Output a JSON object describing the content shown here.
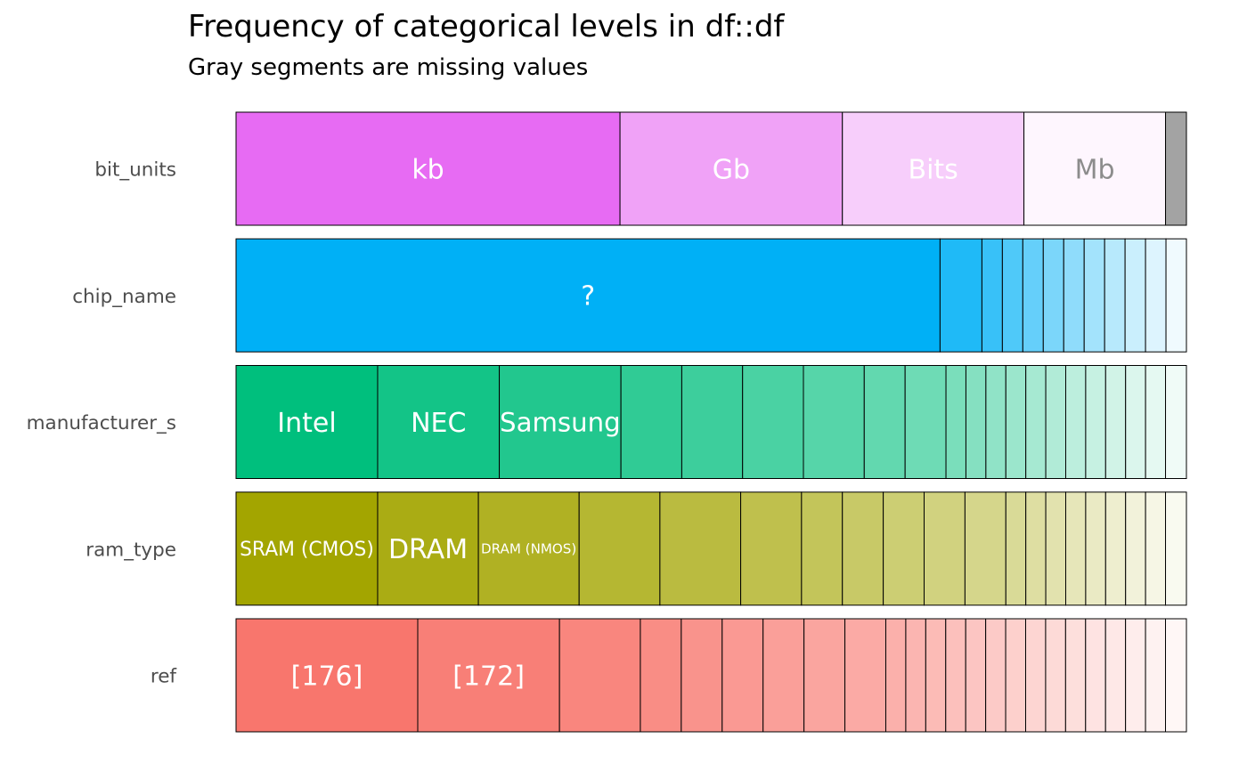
{
  "chart_data": {
    "type": "bar",
    "title": "Frequency of categorical levels in df::df",
    "subtitle": "Gray segments are missing values",
    "missing_color": "#a3a3a3",
    "label_light_color": "#ffffff",
    "label_dark_color": "#8c8c8c",
    "variables": [
      {
        "name": "bit_units",
        "base_color": "#e76bf3",
        "segments": [
          {
            "label": "kb",
            "proportion": 0.404
          },
          {
            "label": "Gb",
            "proportion": 0.234
          },
          {
            "label": "Bits",
            "proportion": 0.191
          },
          {
            "label": "Mb",
            "proportion": 0.149
          }
        ],
        "missing_proportion": 0.022
      },
      {
        "name": "chip_name",
        "base_color": "#00b0f6",
        "segments": [
          {
            "label": "?",
            "proportion": 0.723
          },
          {
            "label": "",
            "proportion": 0.043
          },
          {
            "label": "",
            "proportion": 0.021
          },
          {
            "label": "",
            "proportion": 0.021
          },
          {
            "label": "",
            "proportion": 0.021
          },
          {
            "label": "",
            "proportion": 0.021
          },
          {
            "label": "",
            "proportion": 0.021
          },
          {
            "label": "",
            "proportion": 0.021
          },
          {
            "label": "",
            "proportion": 0.021
          },
          {
            "label": "",
            "proportion": 0.021
          },
          {
            "label": "",
            "proportion": 0.021
          },
          {
            "label": "",
            "proportion": 0.021
          }
        ],
        "missing_proportion": 0
      },
      {
        "name": "manufacturer_s",
        "base_color": "#00bf7d",
        "segments": [
          {
            "label": "Intel",
            "proportion": 0.149
          },
          {
            "label": "NEC",
            "proportion": 0.128
          },
          {
            "label": "Samsung",
            "proportion": 0.128
          },
          {
            "label": "",
            "proportion": 0.064
          },
          {
            "label": "",
            "proportion": 0.064
          },
          {
            "label": "",
            "proportion": 0.064
          },
          {
            "label": "",
            "proportion": 0.064
          },
          {
            "label": "",
            "proportion": 0.043
          },
          {
            "label": "",
            "proportion": 0.043
          },
          {
            "label": "",
            "proportion": 0.021
          },
          {
            "label": "",
            "proportion": 0.021
          },
          {
            "label": "",
            "proportion": 0.021
          },
          {
            "label": "",
            "proportion": 0.021
          },
          {
            "label": "",
            "proportion": 0.021
          },
          {
            "label": "",
            "proportion": 0.021
          },
          {
            "label": "",
            "proportion": 0.021
          },
          {
            "label": "",
            "proportion": 0.021
          },
          {
            "label": "",
            "proportion": 0.021
          },
          {
            "label": "",
            "proportion": 0.021
          },
          {
            "label": "",
            "proportion": 0.021
          },
          {
            "label": "",
            "proportion": 0.022
          }
        ],
        "missing_proportion": 0
      },
      {
        "name": "ram_type",
        "base_color": "#a3a500",
        "segments": [
          {
            "label": "SRAM (CMOS)",
            "proportion": 0.149
          },
          {
            "label": "DRAM",
            "proportion": 0.106
          },
          {
            "label": "DRAM (NMOS)",
            "proportion": 0.106
          },
          {
            "label": "",
            "proportion": 0.085
          },
          {
            "label": "",
            "proportion": 0.085
          },
          {
            "label": "",
            "proportion": 0.064
          },
          {
            "label": "",
            "proportion": 0.043
          },
          {
            "label": "",
            "proportion": 0.043
          },
          {
            "label": "",
            "proportion": 0.043
          },
          {
            "label": "",
            "proportion": 0.043
          },
          {
            "label": "",
            "proportion": 0.043
          },
          {
            "label": "",
            "proportion": 0.021
          },
          {
            "label": "",
            "proportion": 0.021
          },
          {
            "label": "",
            "proportion": 0.021
          },
          {
            "label": "",
            "proportion": 0.021
          },
          {
            "label": "",
            "proportion": 0.021
          },
          {
            "label": "",
            "proportion": 0.021
          },
          {
            "label": "",
            "proportion": 0.021
          },
          {
            "label": "",
            "proportion": 0.021
          },
          {
            "label": "",
            "proportion": 0.022
          }
        ],
        "missing_proportion": 0
      },
      {
        "name": "ref",
        "base_color": "#f8766d",
        "segments": [
          {
            "label": "[176]",
            "proportion": 0.191
          },
          {
            "label": "[172]",
            "proportion": 0.149
          },
          {
            "label": "",
            "proportion": 0.085
          },
          {
            "label": "",
            "proportion": 0.043
          },
          {
            "label": "",
            "proportion": 0.043
          },
          {
            "label": "",
            "proportion": 0.043
          },
          {
            "label": "",
            "proportion": 0.043
          },
          {
            "label": "",
            "proportion": 0.043
          },
          {
            "label": "",
            "proportion": 0.043
          },
          {
            "label": "",
            "proportion": 0.021
          },
          {
            "label": "",
            "proportion": 0.021
          },
          {
            "label": "",
            "proportion": 0.021
          },
          {
            "label": "",
            "proportion": 0.021
          },
          {
            "label": "",
            "proportion": 0.021
          },
          {
            "label": "",
            "proportion": 0.021
          },
          {
            "label": "",
            "proportion": 0.021
          },
          {
            "label": "",
            "proportion": 0.021
          },
          {
            "label": "",
            "proportion": 0.021
          },
          {
            "label": "",
            "proportion": 0.021
          },
          {
            "label": "",
            "proportion": 0.021
          },
          {
            "label": "",
            "proportion": 0.021
          },
          {
            "label": "",
            "proportion": 0.021
          },
          {
            "label": "",
            "proportion": 0.021
          },
          {
            "label": "",
            "proportion": 0.022
          }
        ],
        "missing_proportion": 0
      }
    ]
  }
}
